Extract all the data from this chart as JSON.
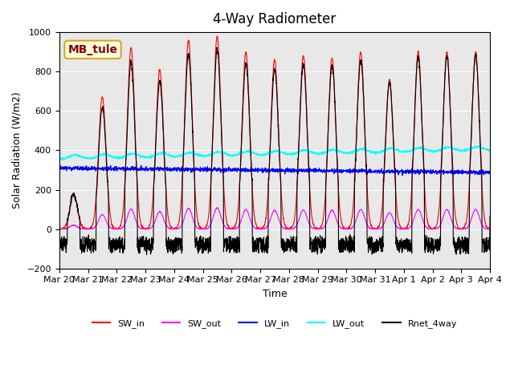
{
  "title": "4-Way Radiometer",
  "xlabel": "Time",
  "ylabel": "Solar Radiation (W/m2)",
  "station_label": "MB_tule",
  "ylim": [
    -200,
    1000
  ],
  "legend_entries": [
    "SW_in",
    "SW_out",
    "LW_in",
    "LW_out",
    "Rnet_4way"
  ],
  "legend_colors": [
    "red",
    "magenta",
    "blue",
    "cyan",
    "black"
  ],
  "xtick_labels": [
    "Mar 20",
    "Mar 21",
    "Mar 22",
    "Mar 23",
    "Mar 24",
    "Mar 25",
    "Mar 26",
    "Mar 27",
    "Mar 28",
    "Mar 29",
    "Mar 30",
    "Mar 31",
    "Apr 1",
    "Apr 2",
    "Apr 3",
    "Apr 4"
  ],
  "bg_color": "#e8e8e8"
}
